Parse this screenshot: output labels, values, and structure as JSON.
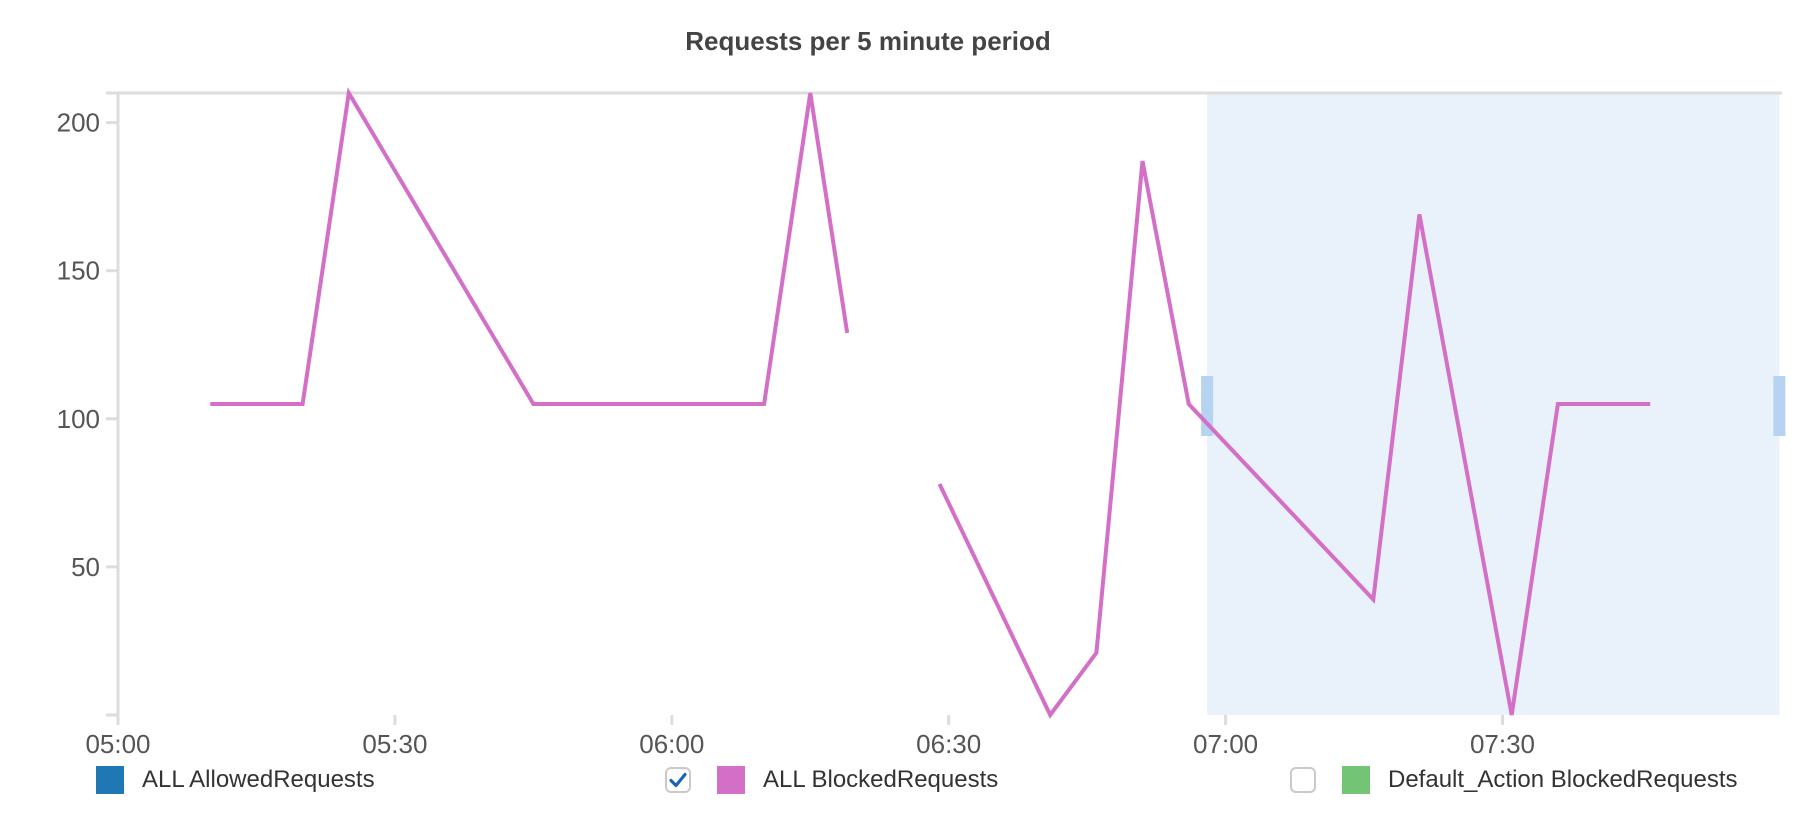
{
  "chart_data": {
    "type": "line",
    "title": "Requests per 5 minute period",
    "xlabel": "",
    "ylabel": "",
    "x_tick_labels": [
      "05:00",
      "05:30",
      "06:00",
      "06:30",
      "07:00",
      "07:30"
    ],
    "x_range_minutes": [
      0,
      180
    ],
    "y_ticks": [
      50,
      100,
      150,
      200
    ],
    "ylim": [
      0,
      210
    ],
    "grid": false,
    "legend_position": "bottom",
    "highlight_range": {
      "from": "06:58",
      "to": "08:00"
    },
    "series": [
      {
        "name": "ALL AllowedRequests",
        "color": "#1f77b4",
        "checked": null,
        "points": []
      },
      {
        "name": "ALL BlockedRequests",
        "color": "#d36fc7",
        "checked": true,
        "segments": [
          [
            {
              "x": "05:10",
              "y": 105
            },
            {
              "x": "05:20",
              "y": 105
            },
            {
              "x": "05:25",
              "y": 210
            },
            {
              "x": "05:45",
              "y": 105
            },
            {
              "x": "06:10",
              "y": 105
            },
            {
              "x": "06:15",
              "y": 210
            },
            {
              "x": "06:19",
              "y": 129
            }
          ],
          [
            {
              "x": "06:29",
              "y": 78
            },
            {
              "x": "06:41",
              "y": 0
            },
            {
              "x": "06:46",
              "y": 21
            },
            {
              "x": "06:51",
              "y": 187
            },
            {
              "x": "06:56",
              "y": 105
            },
            {
              "x": "07:16",
              "y": 39
            },
            {
              "x": "07:21",
              "y": 169
            },
            {
              "x": "07:31",
              "y": 0
            },
            {
              "x": "07:36",
              "y": 105
            },
            {
              "x": "07:46",
              "y": 105
            }
          ]
        ]
      },
      {
        "name": "Default_Action BlockedRequests",
        "color": "#74c476",
        "checked": false,
        "points": []
      }
    ]
  }
}
